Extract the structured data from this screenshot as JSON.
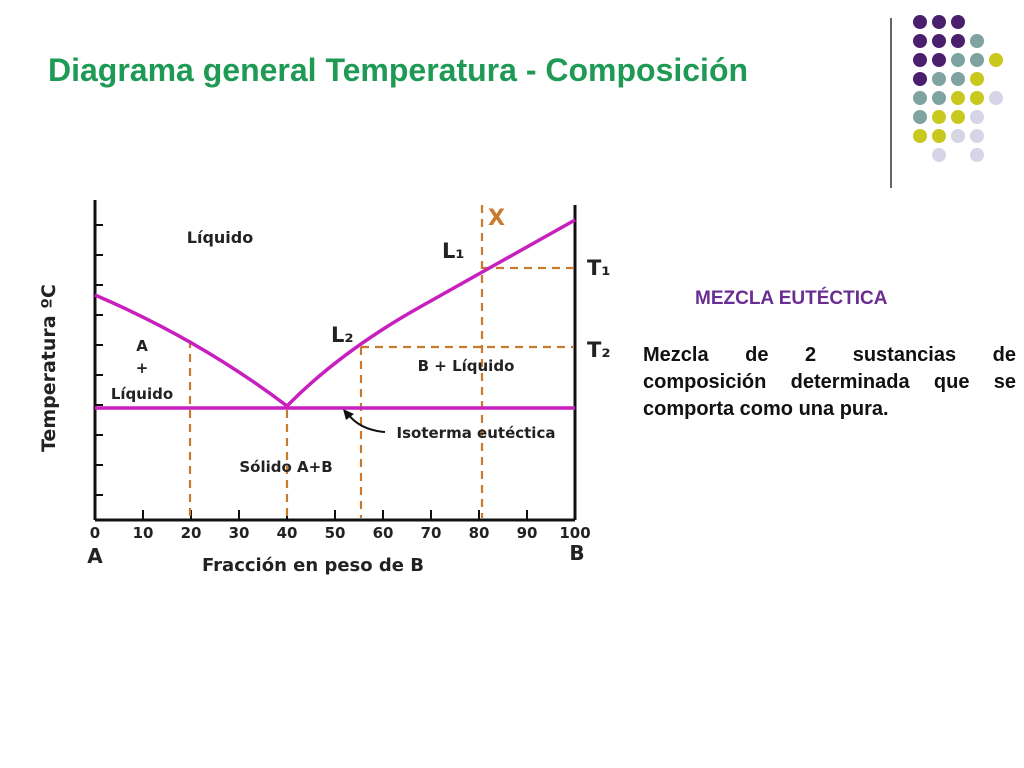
{
  "slide": {
    "title": "Diagrama general Temperatura - Composición",
    "side_heading": "MEZCLA EUTÉCTICA",
    "side_text": "Mezcla de 2 sustancias de composición determinada que se comporta como una pura.",
    "colors": {
      "title": "#1f9a55",
      "heading": "#6a2d91",
      "curve": "#c81fbf",
      "dashed": "#c87a2e",
      "dot_purple": "#4a1f6e",
      "dot_teal": "#7fa3a0",
      "dot_yellow": "#c9c81f",
      "dot_lavender": "#d6d4e6"
    }
  },
  "diagram": {
    "y_axis_label": "Temperatura ºC",
    "x_axis_label": "Fracción en peso de B",
    "x_ticks": [
      "0",
      "10",
      "20",
      "30",
      "40",
      "50",
      "60",
      "70",
      "80",
      "90",
      "100"
    ],
    "end_left": "A",
    "end_right": "B",
    "region_liquid": "Líquido",
    "region_a_liquid": [
      "A",
      "+",
      "Líquido"
    ],
    "region_b_liquid": "B + Líquido",
    "region_solid": "Sólido A+B",
    "isotherm_label": "Isoterma eutéctica",
    "point_x": "X",
    "point_l1": "L₁",
    "point_l2": "L₂",
    "temp_t1": "T₁",
    "temp_t2": "T₂"
  }
}
